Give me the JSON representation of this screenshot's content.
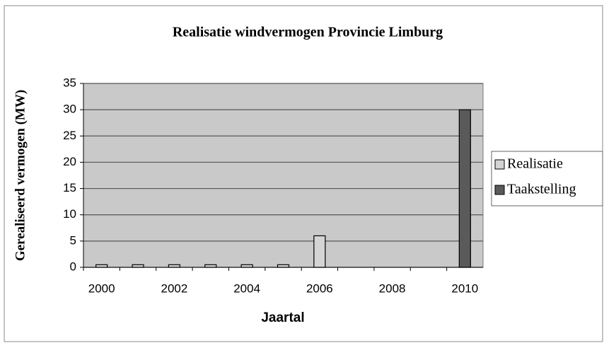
{
  "chart_data": {
    "type": "bar",
    "title": "Realisatie windvermogen Provincie Limburg",
    "x_label": "Jaartal",
    "y_label": "Gerealiseerd vermogen (MW)",
    "categories": [
      "2000",
      null,
      "2002",
      null,
      "2004",
      null,
      "2006",
      null,
      "2008",
      null,
      "2010"
    ],
    "series": [
      {
        "name": "Realisatie",
        "color": "#d4d4d4",
        "values": [
          0.5,
          0.5,
          0.5,
          0.5,
          0.5,
          0.5,
          6,
          null,
          null,
          null,
          null
        ]
      },
      {
        "name": "Taakstelling",
        "color": "#5a5a5a",
        "values": [
          null,
          null,
          null,
          null,
          null,
          null,
          null,
          null,
          null,
          null,
          30
        ]
      }
    ],
    "ylim": [
      0,
      35
    ],
    "yticks": [
      0,
      5,
      10,
      15,
      20,
      25,
      30,
      35
    ],
    "grid": true,
    "legend": "right"
  }
}
